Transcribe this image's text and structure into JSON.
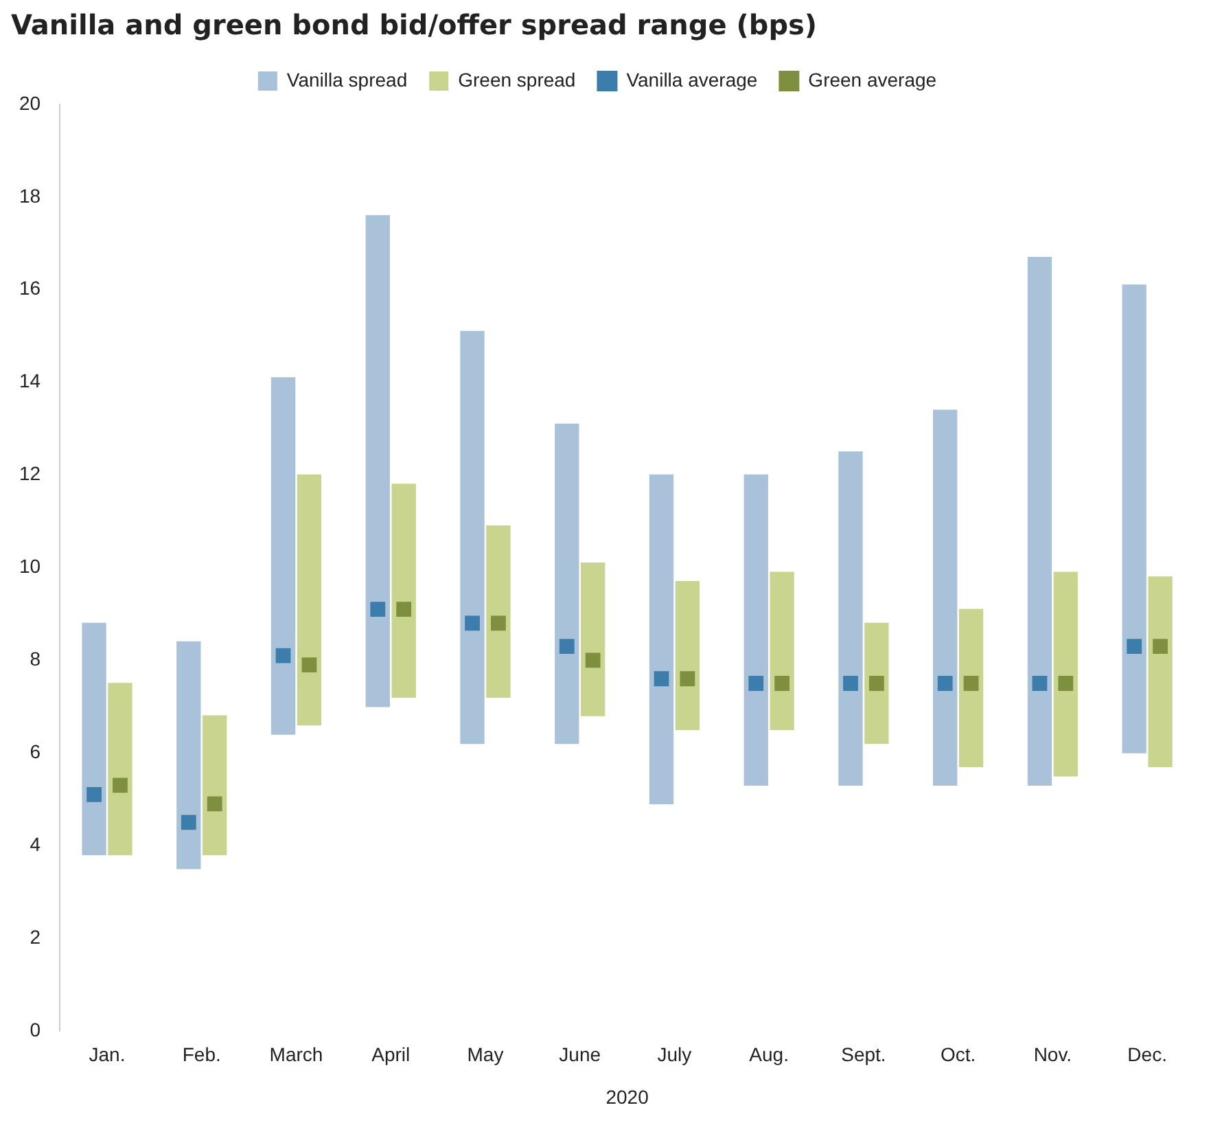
{
  "chart_data": {
    "type": "bar",
    "title": "Vanilla and green bond bid/offer spread range (bps)",
    "xlabel": "2020",
    "categories": [
      "Jan.",
      "Feb.",
      "March",
      "April",
      "May",
      "June",
      "July",
      "Aug.",
      "Sept.",
      "Oct.",
      "Nov.",
      "Dec."
    ],
    "series": [
      {
        "name": "Vanilla spread",
        "color": "#a9c2da",
        "base": [
          3.8,
          3.5,
          6.4,
          7.0,
          6.2,
          6.2,
          4.9,
          5.3,
          5.3,
          5.3,
          5.3,
          6.0
        ],
        "values": [
          5.0,
          4.9,
          7.7,
          10.6,
          8.9,
          6.9,
          7.1,
          6.7,
          7.2,
          8.1,
          11.4,
          10.1
        ]
      },
      {
        "name": "Green spread",
        "color": "#c9d58e",
        "base": [
          3.8,
          3.8,
          6.6,
          7.2,
          7.2,
          6.8,
          6.5,
          6.5,
          6.2,
          5.7,
          5.5,
          5.7
        ],
        "values": [
          3.7,
          3.0,
          5.4,
          4.6,
          3.7,
          3.3,
          3.2,
          3.4,
          2.6,
          3.4,
          4.4,
          4.1
        ]
      },
      {
        "name": "Vanilla average",
        "type": "scatter",
        "marker": "square",
        "color": "#3c7dac",
        "x": [
          "Jan.",
          "Feb.",
          "March",
          "April",
          "May",
          "June",
          "July",
          "Aug.",
          "Sept.",
          "Oct.",
          "Nov.",
          "Dec."
        ],
        "values": [
          5.1,
          4.5,
          8.1,
          9.1,
          8.8,
          8.3,
          7.6,
          7.5,
          7.5,
          7.5,
          7.5,
          8.3
        ]
      },
      {
        "name": "Green average",
        "type": "scatter",
        "marker": "square",
        "color": "#7e8f3f",
        "x": [
          "Jan.",
          "Feb.",
          "March",
          "April",
          "May",
          "June",
          "July",
          "Aug.",
          "Sept.",
          "Oct.",
          "Nov.",
          "Dec."
        ],
        "values": [
          5.3,
          4.9,
          7.9,
          9.1,
          8.8,
          8.0,
          7.6,
          7.5,
          7.5,
          7.5,
          7.5,
          8.3
        ]
      }
    ],
    "ylim": [
      0,
      20
    ],
    "yticks": [
      0,
      2,
      4,
      6,
      8,
      10,
      12,
      14,
      16,
      18,
      20
    ],
    "grid": false,
    "legend": "top"
  }
}
